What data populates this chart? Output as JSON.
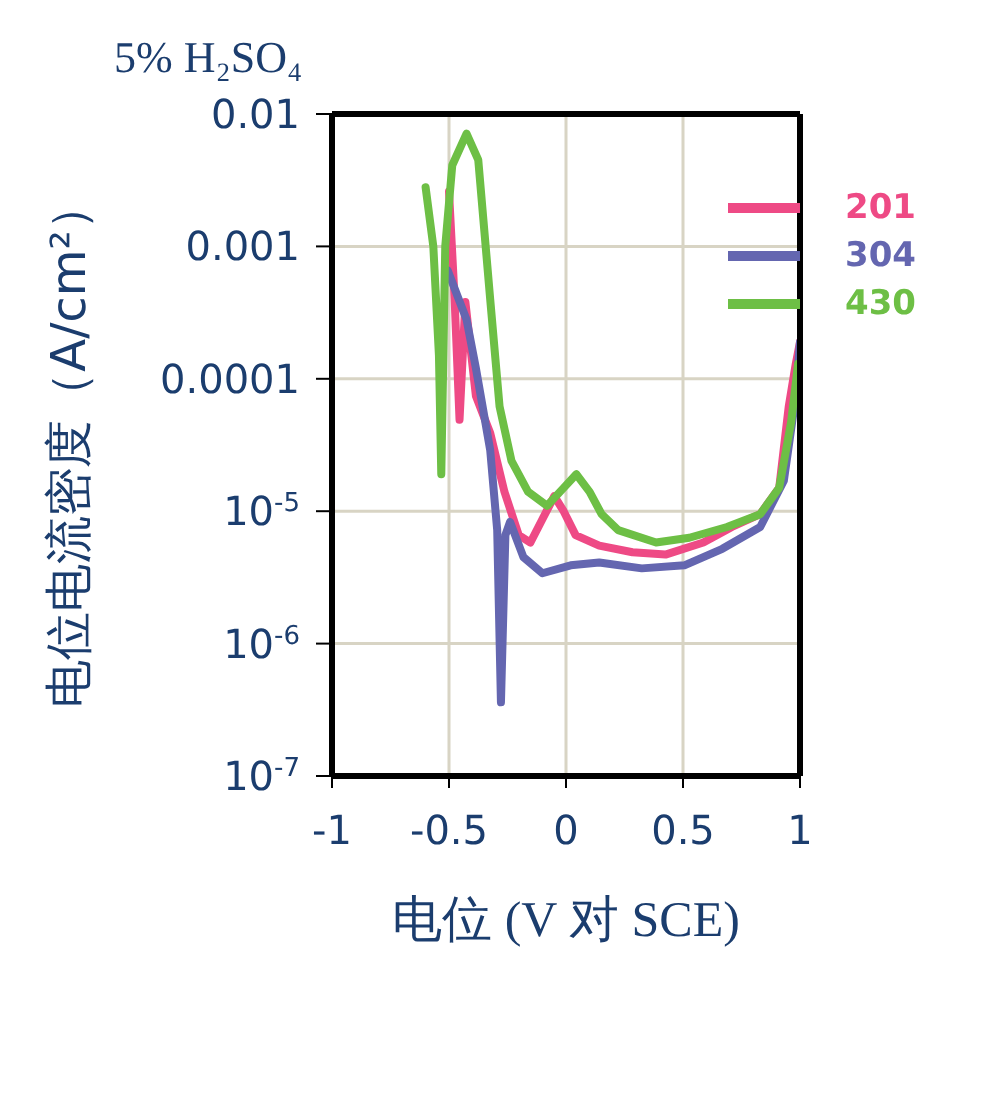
{
  "chart_data": {
    "type": "line",
    "title": "5% H₂SO₄",
    "xlabel": "电位 (V 对 SCE)",
    "ylabel": "电位电流密度（A/cm²）",
    "log": "y",
    "grid": true,
    "legend": "top right",
    "line_style": "solid",
    "marker": "none",
    "xlim": [
      -1,
      1
    ],
    "xticks": [
      -1,
      -0.5,
      0,
      0.5,
      1
    ],
    "ylim": [
      1e-07,
      0.01
    ],
    "yticks": [
      {
        "value": 0.01,
        "label": "0.01"
      },
      {
        "value": 0.001,
        "label": "0.001"
      },
      {
        "value": 0.0001,
        "label": "0.0001"
      },
      {
        "value": 1e-05,
        "label": "10$^{-5}$"
      },
      {
        "value": 1e-06,
        "label": "10$^{-6}$"
      },
      {
        "value": 1e-07,
        "label": "10$^{-7}$"
      }
    ],
    "series": [
      {
        "name": "201",
        "color": "#ee4a85",
        "x": [
          -0.5,
          -0.476,
          -0.455,
          -0.43,
          -0.385,
          -0.324,
          -0.263,
          -0.202,
          -0.152,
          -0.101,
          -0.05,
          -0.01,
          0.041,
          0.142,
          0.284,
          0.425,
          0.587,
          0.709,
          0.83,
          0.911,
          0.952,
          0.982,
          1.0
        ],
        "values": [
          0.0026,
          0.0004,
          4.9e-05,
          0.00038,
          7.4e-05,
          3.9e-05,
          1.4e-05,
          6.6e-06,
          5.8e-06,
          8.7e-06,
          1.3e-05,
          1e-05,
          6.6e-06,
          5.5e-06,
          4.9e-06,
          4.7e-06,
          5.8e-06,
          7.6e-06,
          9.5e-06,
          1.5e-05,
          6.2e-05,
          0.00013,
          0.00019
        ]
      },
      {
        "name": "304",
        "color": "#6466b0",
        "x": [
          -0.506,
          -0.425,
          -0.385,
          -0.324,
          -0.294,
          -0.278,
          -0.259,
          -0.239,
          -0.182,
          -0.101,
          0.02,
          0.142,
          0.324,
          0.506,
          0.668,
          0.83,
          0.931,
          0.982,
          1.0
        ],
        "values": [
          0.00066,
          0.00028,
          0.00012,
          2.9e-05,
          7.2e-06,
          3.6e-07,
          6.6e-06,
          8.3e-06,
          4.5e-06,
          3.4e-06,
          3.9e-06,
          4.1e-06,
          3.7e-06,
          3.9e-06,
          5.2e-06,
          7.6e-06,
          1.7e-05,
          7.4e-05,
          0.00019
        ]
      },
      {
        "name": "430",
        "color": "#6dbf45",
        "x": [
          -0.6,
          -0.567,
          -0.543,
          -0.533,
          -0.516,
          -0.486,
          -0.425,
          -0.375,
          -0.324,
          -0.284,
          -0.233,
          -0.162,
          -0.081,
          -0.01,
          0.044,
          0.101,
          0.152,
          0.223,
          0.385,
          0.527,
          0.688,
          0.83,
          0.911,
          0.962,
          0.992
        ],
        "values": [
          0.0028,
          0.001,
          0.00015,
          1.9e-05,
          0.001,
          0.0041,
          0.0071,
          0.0045,
          0.0004,
          6.2e-05,
          2.4e-05,
          1.4e-05,
          1.1e-05,
          1.5e-05,
          1.9e-05,
          1.4e-05,
          9.5e-06,
          7.2e-06,
          5.8e-06,
          6.3e-06,
          7.6e-06,
          9.5e-06,
          1.5e-05,
          4.7e-05,
          0.00013
        ]
      }
    ]
  }
}
